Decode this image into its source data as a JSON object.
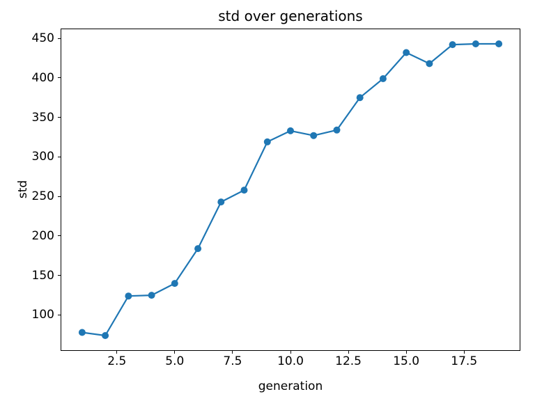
{
  "chart_data": {
    "type": "line",
    "title": "std over generations",
    "xlabel": "generation",
    "ylabel": "std",
    "series": [
      {
        "name": "std",
        "x": [
          1,
          2,
          3,
          4,
          5,
          6,
          7,
          8,
          9,
          10,
          11,
          12,
          13,
          14,
          15,
          16,
          17,
          18,
          19
        ],
        "values": [
          78,
          74,
          124,
          125,
          140,
          184,
          243,
          258,
          319,
          333,
          327,
          334,
          375,
          399,
          432,
          418,
          442,
          443,
          443
        ]
      }
    ],
    "xticks": [
      2.5,
      5.0,
      7.5,
      10.0,
      12.5,
      15.0,
      17.5
    ],
    "xtick_labels": [
      "2.5",
      "5.0",
      "7.5",
      "10.0",
      "12.5",
      "15.0",
      "17.5"
    ],
    "yticks": [
      100,
      150,
      200,
      250,
      300,
      350,
      400,
      450
    ],
    "ytick_labels": [
      "100",
      "150",
      "200",
      "250",
      "300",
      "350",
      "400",
      "450"
    ],
    "xlim": [
      0.1,
      19.9
    ],
    "ylim": [
      55.5,
      461.5
    ],
    "line_color": "#1f77b4",
    "marker": "circle",
    "grid": false,
    "legend": "none"
  }
}
